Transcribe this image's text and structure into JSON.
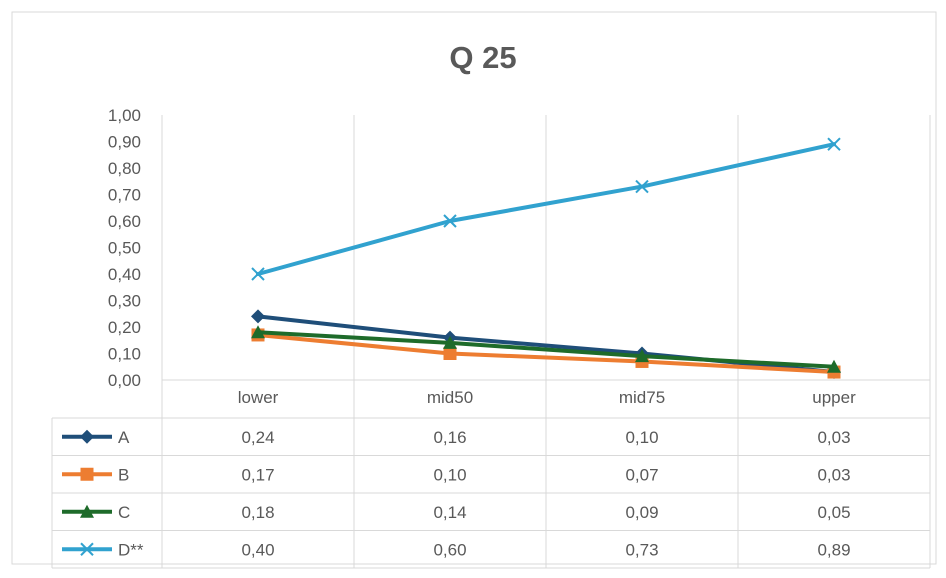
{
  "chart_data": {
    "type": "line",
    "title": "Q 25",
    "categories": [
      "lower",
      "mid50",
      "mid75",
      "upper"
    ],
    "ylim": [
      0,
      1
    ],
    "yticks": [
      "0,00",
      "0,10",
      "0,20",
      "0,30",
      "0,40",
      "0,50",
      "0,60",
      "0,70",
      "0,80",
      "0,90",
      "1,00"
    ],
    "grid": "vertical",
    "legend": "data-table",
    "series": [
      {
        "name": "A",
        "values": [
          0.24,
          0.16,
          0.1,
          0.03
        ],
        "labels": [
          "0,24",
          "0,16",
          "0,10",
          "0,03"
        ],
        "color": "#1f4e79",
        "marker": "diamond"
      },
      {
        "name": "B",
        "values": [
          0.17,
          0.1,
          0.07,
          0.03
        ],
        "labels": [
          "0,17",
          "0,10",
          "0,07",
          "0,03"
        ],
        "color": "#ed7d31",
        "marker": "square"
      },
      {
        "name": "C",
        "values": [
          0.18,
          0.14,
          0.09,
          0.05
        ],
        "labels": [
          "0,18",
          "0,14",
          "0,09",
          "0,05"
        ],
        "color": "#1e6b2a",
        "marker": "triangle"
      },
      {
        "name": "D**",
        "values": [
          0.4,
          0.6,
          0.73,
          0.89
        ],
        "labels": [
          "0,40",
          "0,60",
          "0,73",
          "0,89"
        ],
        "color": "#31a2cf",
        "marker": "x"
      }
    ]
  }
}
